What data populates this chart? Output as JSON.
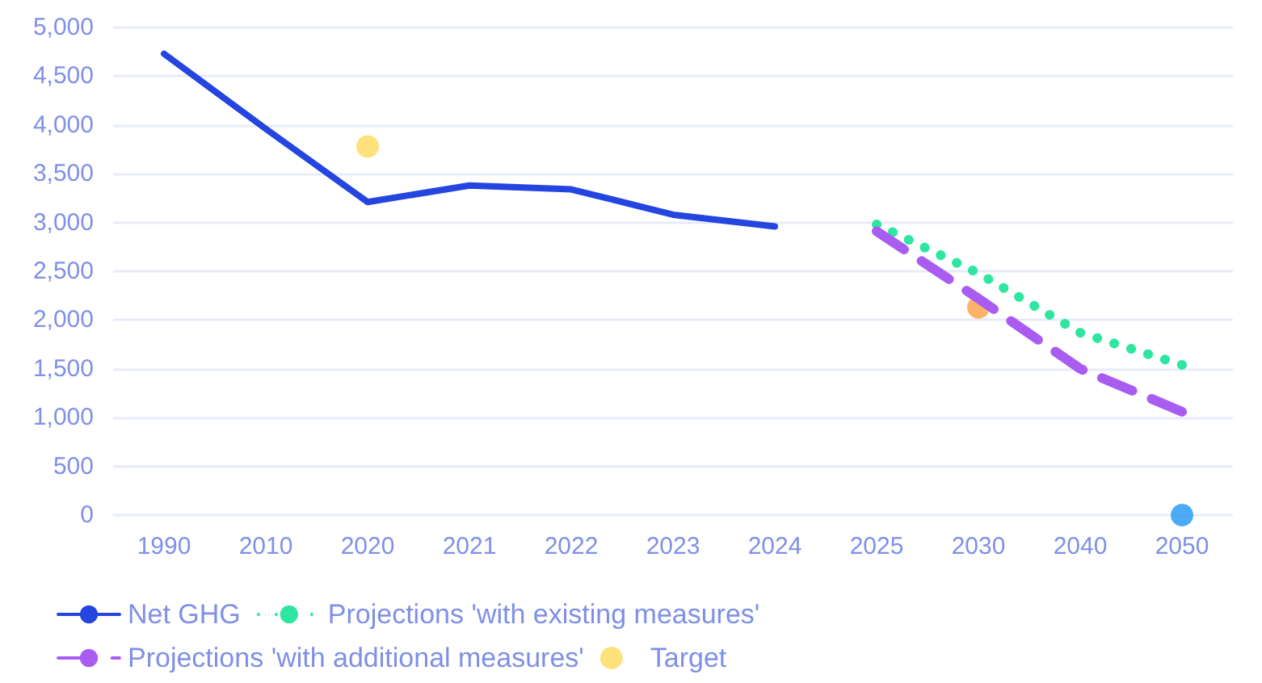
{
  "chart_data": {
    "type": "line",
    "categories": [
      "1990",
      "2010",
      "2020",
      "2021",
      "2022",
      "2023",
      "2024",
      "2025",
      "2030",
      "2040",
      "2050"
    ],
    "ylim": [
      0,
      5000
    ],
    "yticks": [
      {
        "value": 0,
        "label": "0"
      },
      {
        "value": 500,
        "label": "500"
      },
      {
        "value": 1000,
        "label": "1,000"
      },
      {
        "value": 1500,
        "label": "1,500"
      },
      {
        "value": 2000,
        "label": "2,000"
      },
      {
        "value": 2500,
        "label": "2,500"
      },
      {
        "value": 3000,
        "label": "3,000"
      },
      {
        "value": 3500,
        "label": "3,500"
      },
      {
        "value": 4000,
        "label": "4,000"
      },
      {
        "value": 4500,
        "label": "4,500"
      },
      {
        "value": 5000,
        "label": "5,000"
      }
    ],
    "grid": "y",
    "legend": "bottom",
    "marker": "none",
    "series": [
      {
        "name": "Net GHG",
        "color": "#2545e0",
        "line_style": "solid",
        "values": [
          4730,
          3960,
          3210,
          3380,
          3340,
          3080,
          2960,
          null,
          null,
          null,
          null
        ]
      },
      {
        "name": "Projections 'with existing measures'",
        "color": "#2ee6a0",
        "line_style": "dotted",
        "values": [
          null,
          null,
          null,
          null,
          null,
          null,
          null,
          2980,
          2480,
          1870,
          1540
        ]
      },
      {
        "name": "Projections 'with additional measures'",
        "color": "#a95cf0",
        "line_style": "dashed",
        "values": [
          null,
          null,
          null,
          null,
          null,
          null,
          null,
          2910,
          2220,
          1500,
          1060
        ]
      },
      {
        "name": "Target",
        "type": "scatter",
        "marker": "circle",
        "color": "#ffd95a",
        "colors": [
          null,
          null,
          "#ffd95a",
          null,
          null,
          null,
          null,
          null,
          "#ff9f45",
          null,
          "#2196f3"
        ],
        "values": [
          null,
          null,
          3780,
          null,
          null,
          null,
          null,
          null,
          2130,
          null,
          0
        ]
      }
    ]
  }
}
